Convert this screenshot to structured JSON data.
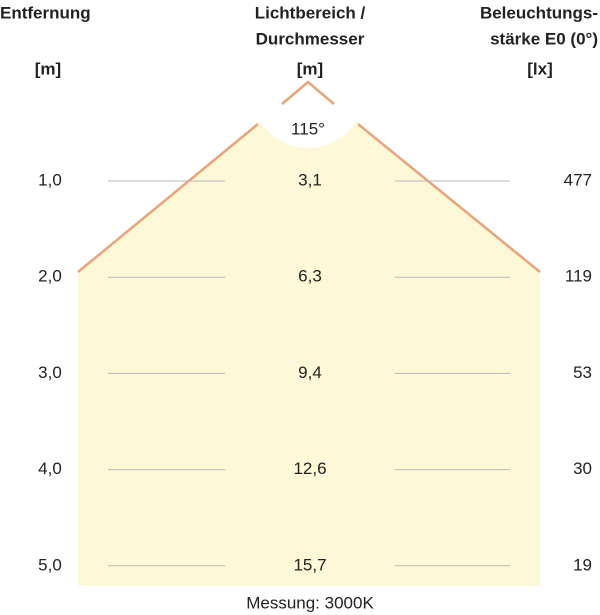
{
  "columns": [
    {
      "lines": [
        "Entfernung"
      ],
      "unit": "[m]"
    },
    {
      "lines": [
        "Lichtbereich /",
        "Durchmesser"
      ],
      "unit": "[m]"
    },
    {
      "lines": [
        "Beleuchtungs-",
        "stärke E0 (0°)"
      ],
      "unit": "[lx]"
    }
  ],
  "angle": "115°",
  "rows": [
    [
      "1,0",
      "3,1",
      "477"
    ],
    [
      "2,0",
      "6,3",
      "119"
    ],
    [
      "3,0",
      "9,4",
      "53"
    ],
    [
      "4,0",
      "12,6",
      "30"
    ],
    [
      "5,0",
      "15,7",
      "19"
    ]
  ],
  "footer": "Messung: 3000K"
}
